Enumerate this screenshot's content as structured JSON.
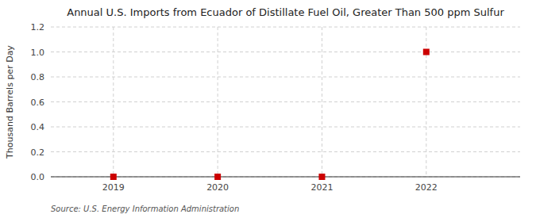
{
  "chart_data": {
    "type": "scatter",
    "title": "Annual U.S. Imports from Ecuador of Distillate Fuel Oil, Greater Than 500 ppm Sulfur",
    "ylabel": "Thousand Barrels per Day",
    "source": "Source: U.S. Energy Information Administration",
    "x": [
      2019,
      2020,
      2021,
      2022
    ],
    "values": [
      0.0,
      0.0,
      0.0,
      1.0
    ],
    "color": "#cc0000",
    "marker": "square",
    "xlim": [
      2018.4,
      2022.9
    ],
    "ylim": [
      0.0,
      1.2
    ],
    "xticks": [
      2019,
      2020,
      2021,
      2022
    ],
    "yticks": [
      {
        "value": 0.0,
        "label": "0.0"
      },
      0.2,
      0.4,
      0.6,
      0.8,
      {
        "value": 1.0,
        "label": "1.0"
      },
      1.2
    ],
    "grid": true
  }
}
